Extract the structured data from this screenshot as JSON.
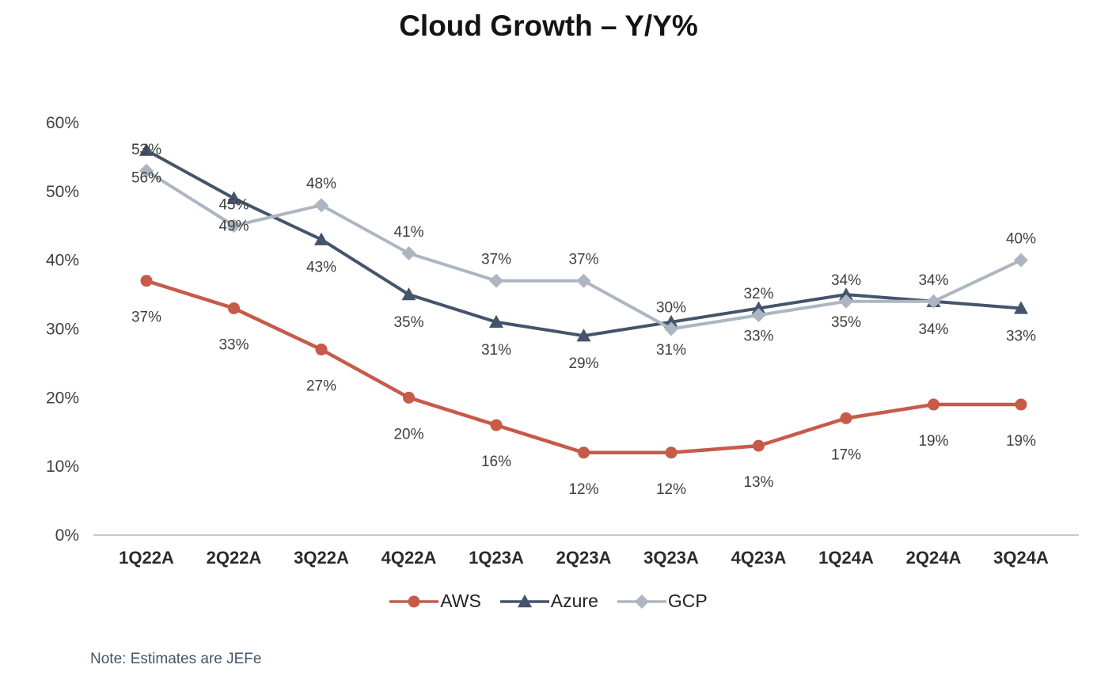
{
  "title": "Cloud Growth – Y/Y%",
  "note": "Note: Estimates are JEFe",
  "chart_data": {
    "type": "line",
    "categories": [
      "1Q22A",
      "2Q22A",
      "3Q22A",
      "4Q22A",
      "1Q23A",
      "2Q23A",
      "3Q23A",
      "4Q23A",
      "1Q24A",
      "2Q24A",
      "3Q24A"
    ],
    "series": [
      {
        "name": "AWS",
        "values": [
          37,
          33,
          27,
          20,
          16,
          12,
          12,
          13,
          17,
          19,
          19
        ],
        "color": "#c65b49",
        "marker": "circle",
        "marker_size": 7.5,
        "line_width": 4.5,
        "label_position": "below",
        "label_offset": 52
      },
      {
        "name": "Azure",
        "values": [
          56,
          49,
          43,
          35,
          31,
          29,
          31,
          33,
          35,
          34,
          33
        ],
        "color": "#44546a",
        "marker": "triangle",
        "marker_size": 9,
        "line_width": 4,
        "label_position": "below",
        "label_offset": 41
      },
      {
        "name": "GCP",
        "values": [
          53,
          45,
          48,
          41,
          37,
          37,
          30,
          32,
          34,
          34,
          40
        ],
        "color": "#adb6c0",
        "marker": "diamond",
        "marker_size": 9,
        "line_width": 4,
        "label_position": "above",
        "label_offset": -21
      }
    ],
    "ylim": [
      0,
      60
    ],
    "yticks": [
      0,
      10,
      20,
      30,
      40,
      50,
      60
    ],
    "ytick_suffix": "%",
    "value_suffix": "%",
    "grid": false,
    "legend_position": "bottom",
    "colors": {
      "axis_line": "#c9c9c9",
      "tick_label": "#404040",
      "x_label": "#2b2b2b",
      "data_label": "#404040",
      "title": "#141414",
      "note": "#44546a"
    }
  }
}
